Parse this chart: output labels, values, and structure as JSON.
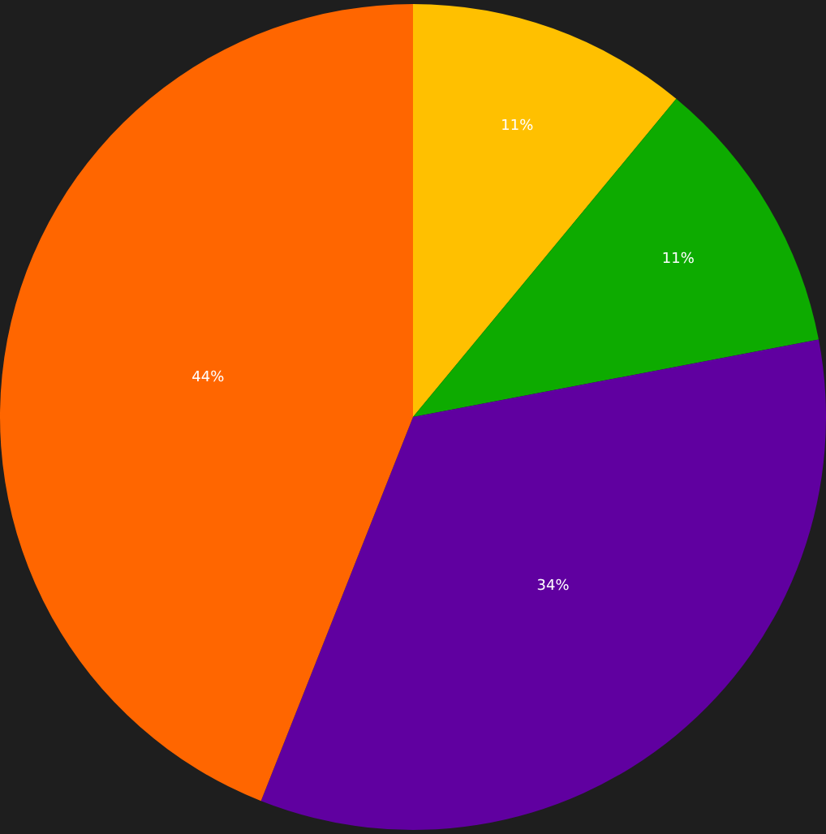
{
  "chart_data": {
    "type": "pie",
    "categories": [
      null,
      null,
      null,
      null
    ],
    "values": [
      11,
      11,
      34,
      44
    ],
    "colors": [
      "#ffc000",
      "#0dab00",
      "#6000a0",
      "#ff6600"
    ],
    "value_labels": [
      "11%",
      "11%",
      "34%",
      "44%"
    ],
    "legend": false
  }
}
